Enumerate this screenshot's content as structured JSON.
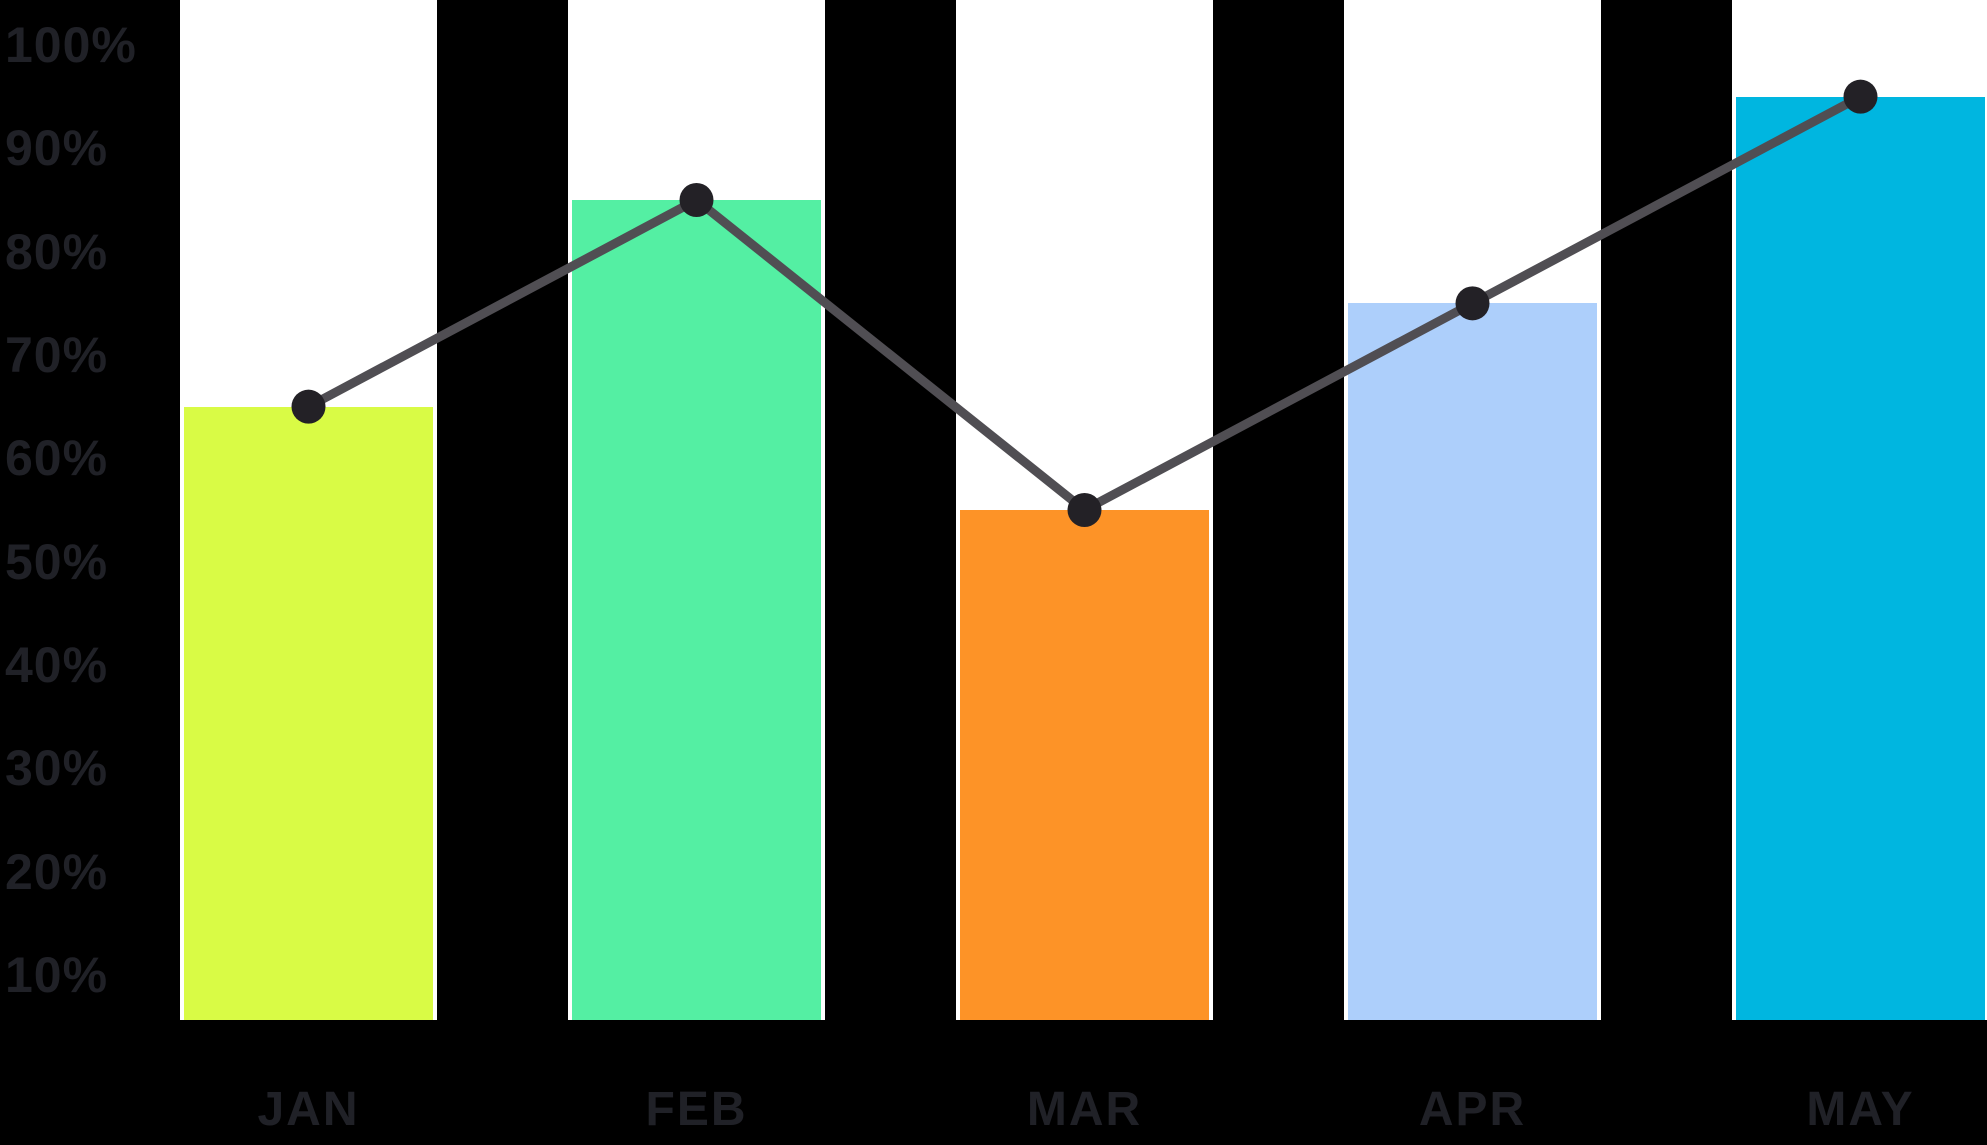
{
  "background_color": "#000000",
  "text_color": "#202127",
  "chart_data": {
    "type": "bar",
    "title": "",
    "xlabel": "",
    "ylabel": "",
    "grid": false,
    "legend": false,
    "categories": [
      "JAN",
      "FEB",
      "MAR",
      "APR",
      "MAY"
    ],
    "series": [
      {
        "name": "monthly-percentage-bars",
        "type": "bar",
        "values": [
          65,
          85,
          55,
          75,
          95
        ],
        "bar_colors": [
          "#d9fb45",
          "#54efa3",
          "#fd9327",
          "#adcffb",
          "#00b6e0"
        ],
        "track_color": "#ffffff"
      },
      {
        "name": "trend-line",
        "type": "line",
        "values": [
          65,
          85,
          55,
          75,
          95
        ],
        "line_color": "#504e53",
        "marker_color": "#232126"
      }
    ],
    "y_ticks": [
      {
        "value": 100,
        "label": "100%"
      },
      {
        "value": 90,
        "label": "90%"
      },
      {
        "value": 80,
        "label": "80%"
      },
      {
        "value": 70,
        "label": "70%"
      },
      {
        "value": 60,
        "label": "60%"
      },
      {
        "value": 50,
        "label": "50%"
      },
      {
        "value": 40,
        "label": "40%"
      },
      {
        "value": 30,
        "label": "30%"
      },
      {
        "value": 20,
        "label": "20%"
      },
      {
        "value": 10,
        "label": "10%"
      }
    ],
    "ylim": [
      0,
      104
    ],
    "legend_position": "none"
  }
}
